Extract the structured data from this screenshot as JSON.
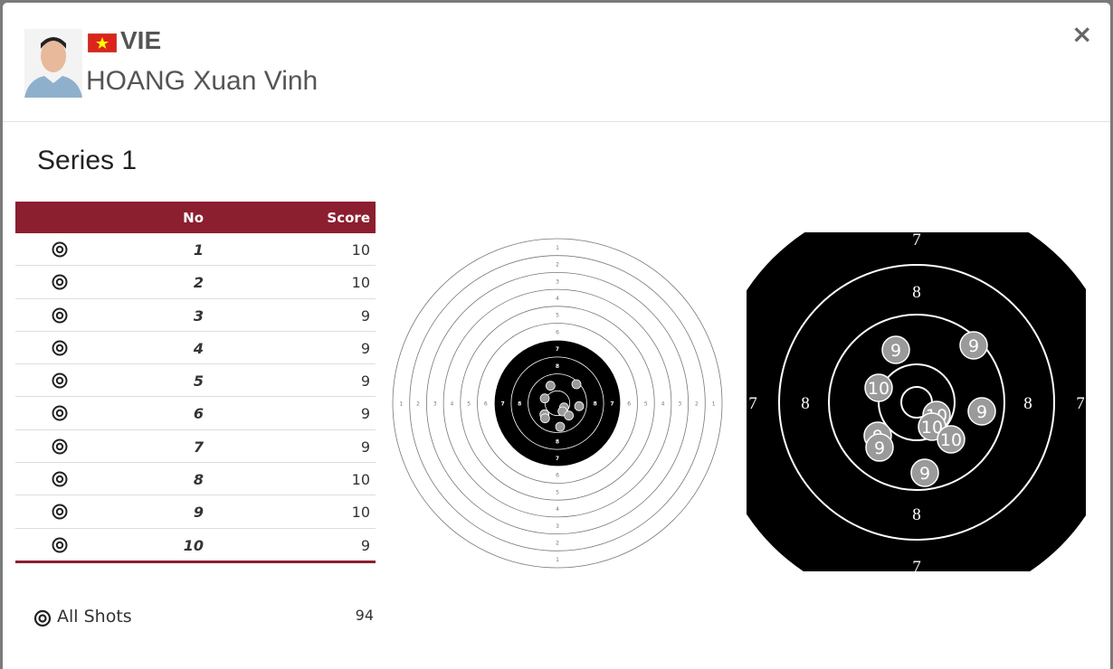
{
  "header": {
    "country": "VIE",
    "name": "HOANG Xuan Vinh",
    "close": "×"
  },
  "series_title": "Series 1",
  "table": {
    "columns": [
      "No",
      "Score"
    ],
    "rows": [
      [
        1,
        10
      ],
      [
        2,
        10
      ],
      [
        3,
        9
      ],
      [
        4,
        9
      ],
      [
        5,
        9
      ],
      [
        6,
        9
      ],
      [
        7,
        9
      ],
      [
        8,
        10
      ],
      [
        9,
        10
      ],
      [
        10,
        9
      ]
    ]
  },
  "total": {
    "label": "All Shots",
    "value": 94
  },
  "target": {
    "rings": [
      1,
      2,
      3,
      4,
      5,
      6,
      7,
      8
    ]
  }
}
